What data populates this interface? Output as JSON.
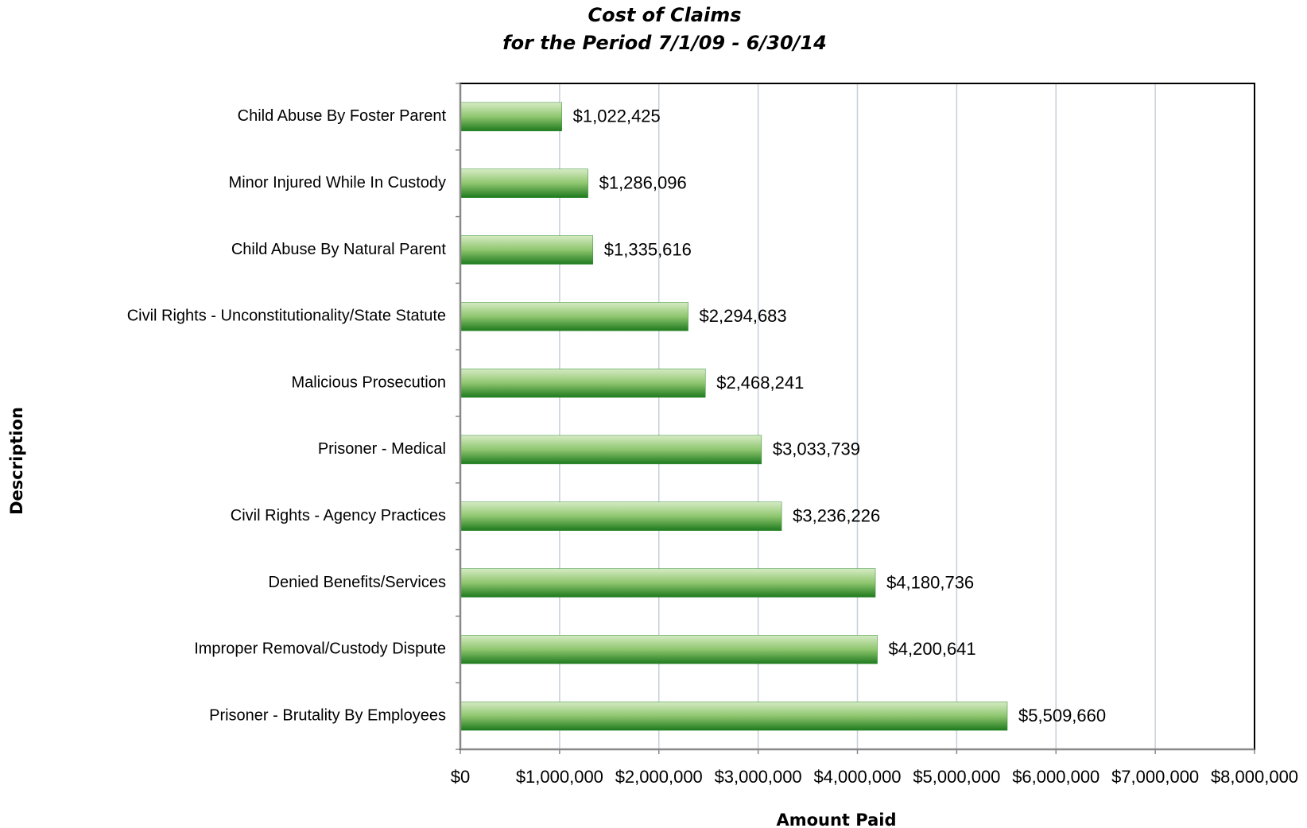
{
  "chart_data": {
    "type": "bar",
    "orientation": "horizontal",
    "title": "Cost of  Claims",
    "subtitle": "for the Period 7/1/09 - 6/30/14",
    "x_label": "Amount Paid",
    "y_label": "Description",
    "categories": [
      "Child Abuse By Foster Parent",
      "Minor Injured While In Custody",
      "Child Abuse By Natural Parent",
      "Civil Rights - Unconstitutionality/State Statute",
      "Malicious Prosecution",
      "Prisoner - Medical",
      "Civil Rights - Agency Practices",
      "Denied Benefits/Services",
      "Improper Removal/Custody Dispute",
      "Prisoner - Brutality By Employees"
    ],
    "values": [
      1022425,
      1286096,
      1335616,
      2294683,
      2468241,
      3033739,
      3236226,
      4180736,
      4200641,
      5509660
    ],
    "value_labels": [
      "$1,022,425",
      "$1,286,096",
      "$1,335,616",
      "$2,294,683",
      "$2,468,241",
      "$3,033,739",
      "$3,236,226",
      "$4,180,736",
      "$4,200,641",
      "$5,509,660"
    ],
    "color": "#2e8b2e",
    "xlim": [
      0,
      8000000
    ],
    "xticks": [
      {
        "value": 0,
        "label": "$0"
      },
      {
        "value": 1000000,
        "label": "$1,000,000"
      },
      {
        "value": 2000000,
        "label": "$2,000,000"
      },
      {
        "value": 3000000,
        "label": "$3,000,000"
      },
      {
        "value": 4000000,
        "label": "$4,000,000"
      },
      {
        "value": 5000000,
        "label": "$5,000,000"
      },
      {
        "value": 6000000,
        "label": "$6,000,000"
      },
      {
        "value": 7000000,
        "label": "$7,000,000"
      },
      {
        "value": 8000000,
        "label": "$8,000,000"
      }
    ],
    "grid": true
  }
}
